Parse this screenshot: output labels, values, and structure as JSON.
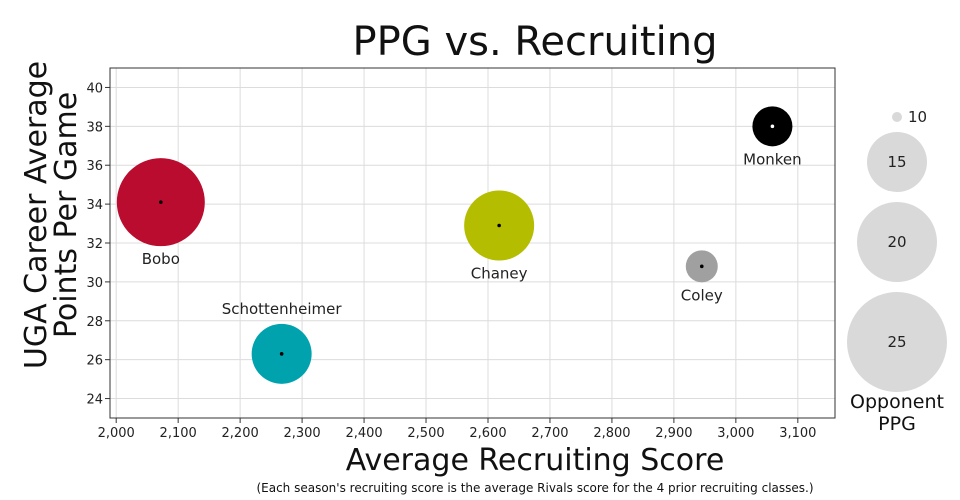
{
  "chart_data": {
    "type": "scatter",
    "title": "PPG vs. Recruiting",
    "xlabel": "Average Recruiting Score",
    "ylabel": "UGA Career Average Points Per Game",
    "ylabel_lines": [
      "UGA Career Average",
      "Points Per Game"
    ],
    "footnote": "(Each season's recruiting score is the average Rivals score for the 4 prior recruiting classes.)",
    "xlim": [
      1990,
      3160
    ],
    "ylim": [
      23,
      41
    ],
    "x_ticks": [
      2000,
      2100,
      2200,
      2300,
      2400,
      2500,
      2600,
      2700,
      2800,
      2900,
      3000,
      3100
    ],
    "x_tick_labels": [
      "2,000",
      "2,100",
      "2,200",
      "2,300",
      "2,400",
      "2,500",
      "2,600",
      "2,700",
      "2,800",
      "2,900",
      "3,000",
      "3,100"
    ],
    "y_ticks": [
      24,
      26,
      28,
      30,
      32,
      34,
      36,
      38,
      40
    ],
    "y_tick_labels": [
      "24",
      "26",
      "28",
      "30",
      "32",
      "34",
      "36",
      "38",
      "40"
    ],
    "grid": true,
    "size_variable": "Opponent PPG",
    "points": [
      {
        "label": "Bobo",
        "x": 2072,
        "y": 34.1,
        "opp_ppg": 22,
        "color": "#BA0C2F",
        "label_position": "below"
      },
      {
        "label": "Schottenheimer",
        "x": 2267,
        "y": 26.3,
        "opp_ppg": 15,
        "color": "#00A3AD",
        "label_position": "above"
      },
      {
        "label": "Chaney",
        "x": 2618,
        "y": 32.9,
        "opp_ppg": 17.5,
        "color": "#B5BD00",
        "label_position": "below"
      },
      {
        "label": "Coley",
        "x": 2945,
        "y": 30.8,
        "opp_ppg": 8,
        "color": "#A0A0A0",
        "label_position": "below"
      },
      {
        "label": "Monken",
        "x": 3059,
        "y": 38.0,
        "opp_ppg": 10,
        "color": "#000000",
        "label_position": "below"
      }
    ],
    "legend": {
      "title_lines": [
        "Opponent",
        "PPG"
      ],
      "placement": "right",
      "color": "#D9D9D9",
      "sizes": [
        {
          "value": 10,
          "label": "10"
        },
        {
          "value": 15,
          "label": "15"
        },
        {
          "value": 20,
          "label": "20"
        },
        {
          "value": 25,
          "label": "25"
        }
      ]
    }
  }
}
